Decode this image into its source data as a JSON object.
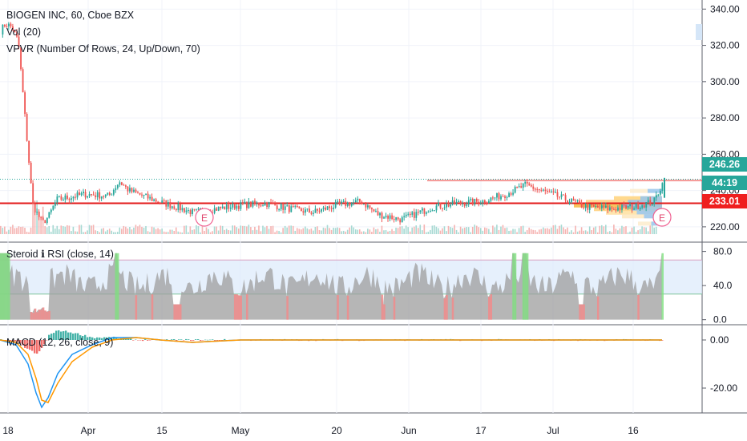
{
  "header": {
    "symbol_line": "BIOGEN INC, 60, Cboe BZX",
    "indicators": [
      "Vol (20)",
      "VPVR (Number Of Rows, 24, Up/Down, 70)"
    ]
  },
  "panes": {
    "rsi_label": "Steroid ℹ RSI (close, 14)",
    "macd_label": "MACD (12, 26, close, 9)"
  },
  "price_tags": {
    "last": {
      "text": "246.26",
      "color": "#26a69a"
    },
    "countdown": {
      "text": "44:19",
      "color": "#26a69a"
    },
    "level": {
      "text": "233.01",
      "color": "#ef1f1f"
    }
  },
  "earnings_marker": "E",
  "colors": {
    "up": "#26a69a",
    "down": "#ef5350",
    "level_line": "#e31a1a",
    "vol_up": "#a6d9d2",
    "vol_down": "#f5b3b1",
    "macd_line": "#2196f3",
    "signal_line": "#ff9800",
    "rsi_fill": "#9e9e9e",
    "rsi_band": "#dbeafb"
  },
  "chart_data": [
    {
      "type": "line",
      "title": "BIOGEN INC, 60, Cboe BZX",
      "x_ticks": [
        "18",
        "Apr",
        "15",
        "May",
        "20",
        "Jun",
        "17",
        "Jul",
        "16"
      ],
      "y_ticks": [
        220,
        240,
        260,
        280,
        300,
        320,
        340
      ],
      "ylim": [
        212,
        345
      ],
      "horizontal_level": 233.01,
      "last_price": 246.26,
      "earnings_markers": [
        "Apr 22",
        "Jul 22"
      ],
      "series": [
        {
          "x_dates": [
            "Mar 18",
            "Mar 19",
            "Mar 20",
            "Mar 21",
            "Mar 22",
            "Mar 25",
            "Mar 27",
            "Mar 29",
            "Apr 2",
            "Apr 5",
            "Apr 9",
            "Apr 12",
            "Apr 17",
            "Apr 22",
            "Apr 26",
            "May 1",
            "May 6",
            "May 10",
            "May 15",
            "May 20",
            "May 24",
            "May 29",
            "Jun 3",
            "Jun 7",
            "Jun 12",
            "Jun 17",
            "Jun 21",
            "Jun 26",
            "Jul 1",
            "Jul 5",
            "Jul 10",
            "Jul 15",
            "Jul 19",
            "Jul 22"
          ],
          "values": [
            328,
            332,
            330,
            322,
            232,
            222,
            226,
            235,
            238,
            237,
            245,
            240,
            235,
            228,
            230,
            232,
            233,
            230,
            228,
            232,
            234,
            227,
            224,
            231,
            233,
            234,
            238,
            243,
            236,
            231,
            230,
            231,
            234,
            246
          ]
        }
      ]
    },
    {
      "type": "area",
      "title": "Steroid ℹ RSI (close, 14)",
      "y_ticks": [
        0.0,
        40.0,
        80.0
      ],
      "ylim": [
        -5,
        90
      ],
      "bands": [
        30,
        70
      ]
    },
    {
      "type": "line",
      "title": "MACD (12, 26, close, 9)",
      "y_ticks": [
        0.0,
        -20.0
      ],
      "ylim": [
        -30,
        6
      ],
      "series": [
        {
          "values": [
            0,
            -2,
            -10,
            -22,
            -28,
            -24,
            -14,
            -6,
            -2,
            1,
            1,
            0,
            -1,
            0,
            0,
            0,
            0,
            0,
            0,
            0
          ]
        },
        {
          "values": [
            0,
            -1,
            -6,
            -16,
            -25,
            -26,
            -18,
            -9,
            -3,
            0,
            1,
            0,
            -1,
            0,
            0,
            0,
            0,
            0,
            0,
            0
          ]
        }
      ]
    }
  ]
}
